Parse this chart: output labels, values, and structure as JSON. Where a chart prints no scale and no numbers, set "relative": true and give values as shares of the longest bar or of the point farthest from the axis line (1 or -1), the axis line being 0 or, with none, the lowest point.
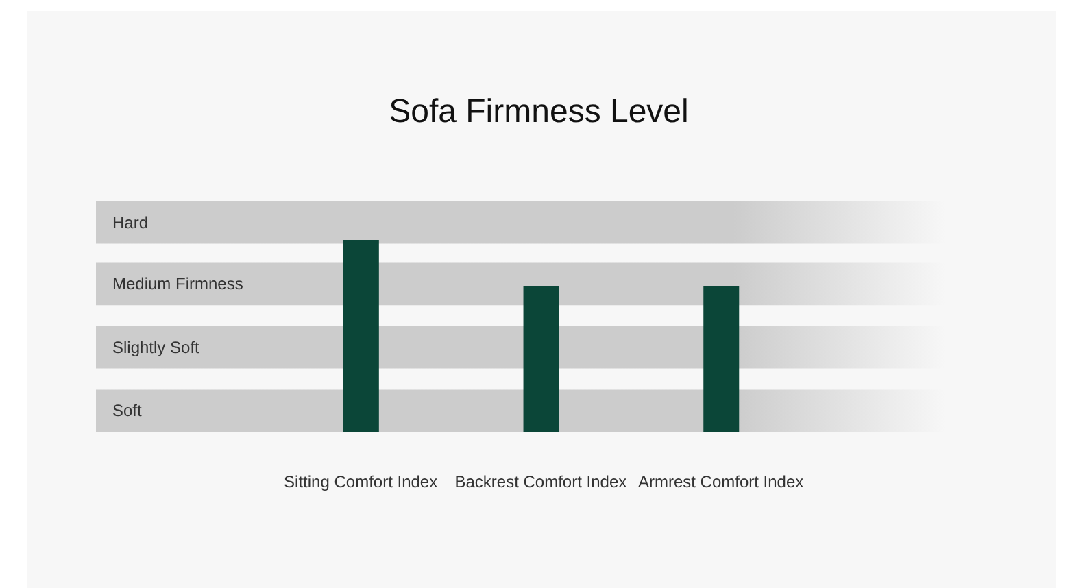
{
  "chart_data": {
    "type": "bar",
    "title": "Sofa Firmness Level",
    "categories": [
      "Sitting Comfort Index",
      "Backrest Comfort Index",
      "Armrest Comfort Index"
    ],
    "values": [
      1,
      0.76,
      0.76
    ],
    "color": "#0b4638",
    "relative": true,
    "bands": [
      {
        "axis": "y",
        "from": 0,
        "to": 0.22,
        "label": "Soft",
        "color": "#cccccc"
      },
      {
        "axis": "y",
        "from": 0.33,
        "to": 0.55,
        "label": "Slightly Soft",
        "color": "#cccccc"
      },
      {
        "axis": "y",
        "from": 0.66,
        "to": 0.88,
        "label": "Medium Firmness",
        "color": "#cccccc"
      },
      {
        "axis": "y",
        "from": 0.98,
        "to": 1.2,
        "label": "Hard",
        "color": "#cccccc"
      }
    ]
  }
}
